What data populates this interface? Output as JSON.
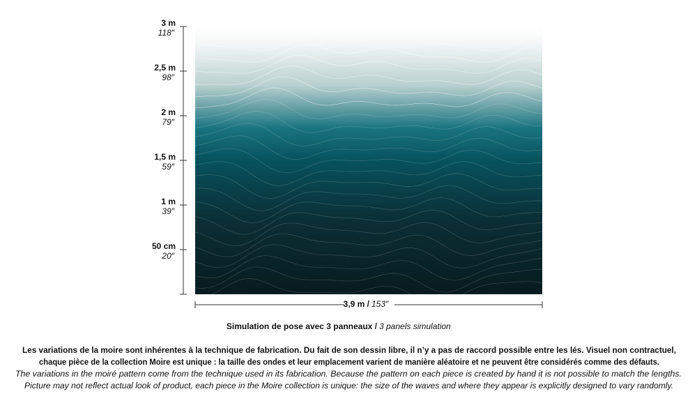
{
  "ruler": {
    "marks": [
      {
        "metric": "3 m",
        "imperial": "118″"
      },
      {
        "metric": "2,5 m",
        "imperial": "98″"
      },
      {
        "metric": "2 m",
        "imperial": "79″"
      },
      {
        "metric": "1,5 m",
        "imperial": "59″"
      },
      {
        "metric": "1 m",
        "imperial": "39″"
      },
      {
        "metric": "50 cm",
        "imperial": "20″"
      }
    ]
  },
  "width_label": {
    "metric": "3,9 m /",
    "imperial": "153″"
  },
  "caption": {
    "fr": "Simulation de pose avec 3 panneaux /",
    "en": "3 panels simulation"
  },
  "disclaimer": {
    "lines": [
      "Les variations de la moire sont inhérentes à la technique de fabrication. Du fait de son dessin libre, il n’y a pas de raccord possible entre les lés. Visuel non contractuel,",
      "chaque pièce de la collection Moire est unique : la taille des ondes et leur emplacement varient de manière aléatoire et ne peuvent être considérés comme des défauts.",
      "The variations in the moiré pattern come from the technique used in its fabrication. Because the pattern on each piece is created by hand it is not possible to match the lengths.",
      "Picture may not reflect actual look of product, each piece in the Moire collection is unique: the size of the waves and where they appear is explicitly designed to vary randomly."
    ]
  }
}
